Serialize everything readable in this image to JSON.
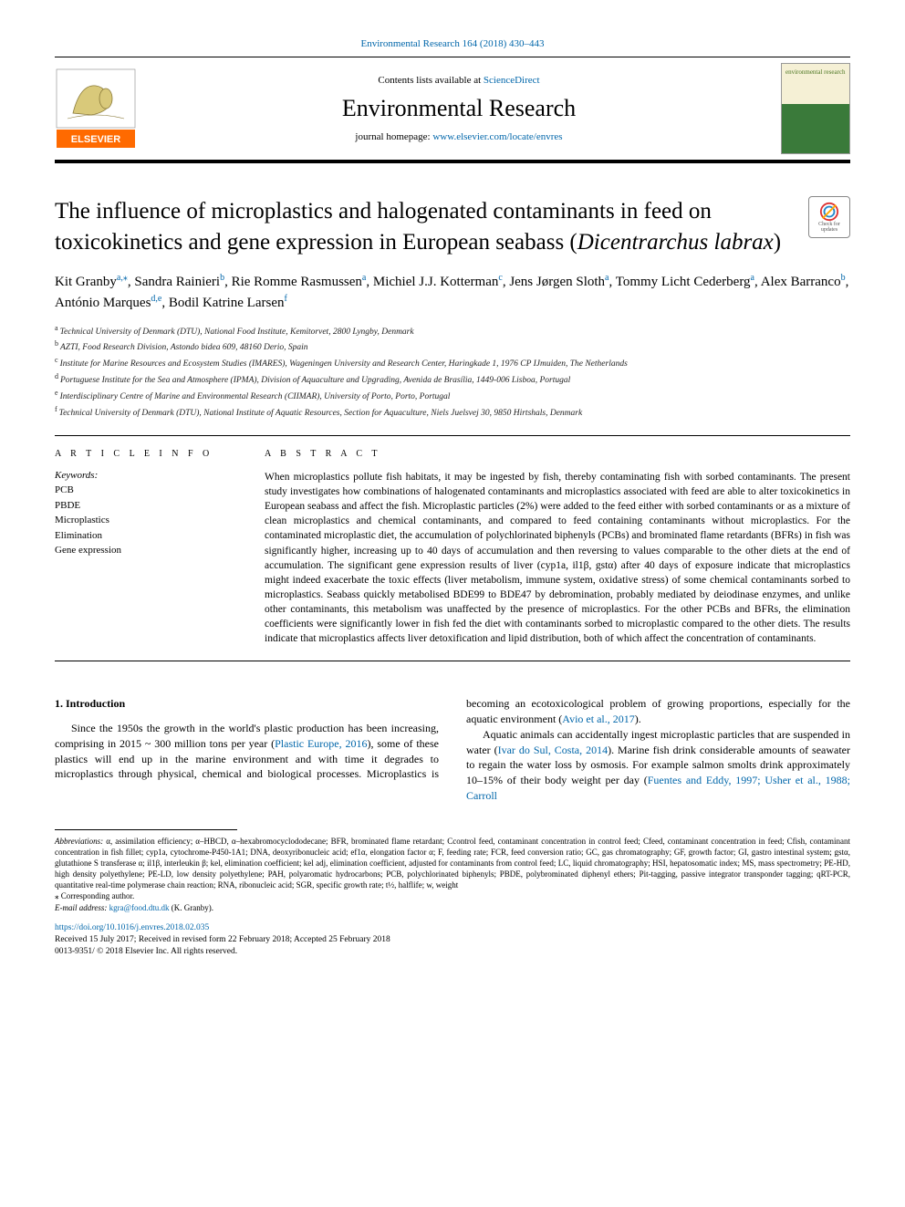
{
  "header": {
    "journal_ref": "Environmental Research 164 (2018) 430–443",
    "contents_prefix": "Contents lists available at ",
    "contents_link": "ScienceDirect",
    "journal_name": "Environmental Research",
    "homepage_prefix": "journal homepage: ",
    "homepage_link": "www.elsevier.com/locate/envres",
    "cover_title": "environmental research"
  },
  "crossmark": {
    "label_top": "Check for",
    "label_bottom": "updates"
  },
  "title": "The influence of microplastics and halogenated contaminants in feed on toxicokinetics and gene expression in European seabass (Dicentrarchus labrax)",
  "title_plain": "The influence of microplastics and halogenated contaminants in feed on toxicokinetics and gene expression in European seabass (",
  "title_italic": "Dicentrarchus labrax",
  "title_close": ")",
  "authors": [
    {
      "name": "Kit Granby",
      "aff": "a,",
      "corr": "⁎"
    },
    {
      "name": "Sandra Rainieri",
      "aff": "b"
    },
    {
      "name": "Rie Romme Rasmussen",
      "aff": "a"
    },
    {
      "name": "Michiel J.J. Kotterman",
      "aff": "c"
    },
    {
      "name": "Jens Jørgen Sloth",
      "aff": "a"
    },
    {
      "name": "Tommy Licht Cederberg",
      "aff": "a"
    },
    {
      "name": "Alex Barranco",
      "aff": "b"
    },
    {
      "name": "António Marques",
      "aff": "d,e"
    },
    {
      "name": "Bodil Katrine Larsen",
      "aff": "f"
    }
  ],
  "affiliations": [
    {
      "key": "a",
      "text": "Technical University of Denmark (DTU), National Food Institute, Kemitorvet, 2800 Lyngby, Denmark"
    },
    {
      "key": "b",
      "text": "AZTI, Food Research Division, Astondo bidea 609, 48160 Derio, Spain"
    },
    {
      "key": "c",
      "text": "Institute for Marine Resources and Ecosystem Studies (IMARES), Wageningen University and Research Center, Haringkade 1, 1976 CP IJmuiden, The Netherlands"
    },
    {
      "key": "d",
      "text": "Portuguese Institute for the Sea and Atmosphere (IPMA), Division of Aquaculture and Upgrading, Avenida de Brasília, 1449-006 Lisboa, Portugal"
    },
    {
      "key": "e",
      "text": "Interdisciplinary Centre of Marine and Environmental Research (CIIMAR), University of Porto, Porto, Portugal"
    },
    {
      "key": "f",
      "text": "Technical University of Denmark (DTU), National Institute of Aquatic Resources, Section for Aquaculture, Niels Juelsvej 30, 9850 Hirtshals, Denmark"
    }
  ],
  "info": {
    "section_label": "A R T I C L E  I N F O",
    "keywords_label": "Keywords:",
    "keywords": [
      "PCB",
      "PBDE",
      "Microplastics",
      "Elimination",
      "Gene expression"
    ]
  },
  "abstract": {
    "section_label": "A B S T R A C T",
    "text": "When microplastics pollute fish habitats, it may be ingested by fish, thereby contaminating fish with sorbed contaminants. The present study investigates how combinations of halogenated contaminants and microplastics associated with feed are able to alter toxicokinetics in European seabass and affect the fish. Microplastic particles (2%) were added to the feed either with sorbed contaminants or as a mixture of clean microplastics and chemical contaminants, and compared to feed containing contaminants without microplastics. For the contaminated microplastic diet, the accumulation of polychlorinated biphenyls (PCBs) and brominated flame retardants (BFRs) in fish was significantly higher, increasing up to 40 days of accumulation and then reversing to values comparable to the other diets at the end of accumulation. The significant gene expression results of liver (cyp1a, il1β, gstα) after 40 days of exposure indicate that microplastics might indeed exacerbate the toxic effects (liver metabolism, immune system, oxidative stress) of some chemical contaminants sorbed to microplastics. Seabass quickly metabolised BDE99 to BDE47 by debromination, probably mediated by deiodinase enzymes, and unlike other contaminants, this metabolism was unaffected by the presence of microplastics. For the other PCBs and BFRs, the elimination coefficients were significantly lower in fish fed the diet with contaminants sorbed to microplastic compared to the other diets. The results indicate that microplastics affects liver detoxification and lipid distribution, both of which affect the concentration of contaminants."
  },
  "body": {
    "heading": "1. Introduction",
    "p1a": "Since the 1950s the growth in the world's plastic production has been increasing, comprising in 2015 ~ 300 million tons per year (",
    "p1_link1": "Plastic Europe, 2016",
    "p1b": "), some of these plastics will end up in the marine environment and with time it degrades to microplastics through physical, chemical and biological processes. Microplastics is becoming an ecotoxicological problem of growing proportions, especially for the aquatic environment (",
    "p1_link2": "Avio et al., 2017",
    "p1c": ").",
    "p2a": "Aquatic animals can accidentally ingest microplastic particles that are suspended in water (",
    "p2_link1": "Ivar do Sul, Costa, 2014",
    "p2b": "). Marine fish drink considerable amounts of seawater to regain the water loss by osmosis. For example salmon smolts drink approximately 10–15% of their body weight per day (",
    "p2_link2": "Fuentes and Eddy, 1997; Usher et al., 1988; Carroll"
  },
  "footnotes": {
    "abbrev_label": "Abbreviations:",
    "abbrev_text": " α, assimilation efficiency; α–HBCD, α–hexabromocyclododecane; BFR, brominated flame retardant; Ccontrol feed, contaminant concentration in control feed; Cfeed, contaminant concentration in feed; Cfish, contaminant concentration in fish fillet; cyp1a, cytochrome-P450-1A1; DNA, deoxyribonucleic acid; ef1α, elongation factor α; F, feeding rate; FCR, feed conversion ratio; GC, gas chromatography; GF, growth factor; GI, gastro intestinal system; gstα, glutathione S transferase α; il1β, interleukin β; kel, elimination coefficient; kel adj, elimination coefficient, adjusted for contaminants from control feed; LC, liquid chromatography; HSI, hepatosomatic index; MS, mass spectrometry; PE-HD, high density polyethylene; PE-LD, low density polyethylene; PAH, polyaromatic hydrocarbons; PCB, polychlorinated biphenyls; PBDE, polybrominated diphenyl ethers; Pit-tagging, passive integrator transponder tagging; qRT-PCR, quantitative real-time polymerase chain reaction; RNA, ribonucleic acid; SGR, specific growth rate; t½, halflife; w, weight",
    "corr_label": "⁎ Corresponding author.",
    "email_label": "E-mail address: ",
    "email": "kgra@food.dtu.dk",
    "email_suffix": " (K. Granby)."
  },
  "doi": {
    "link": "https://doi.org/10.1016/j.envres.2018.02.035",
    "received": "Received 15 July 2017; Received in revised form 22 February 2018; Accepted 25 February 2018",
    "copyright": "0013-9351/ © 2018 Elsevier Inc. All rights reserved."
  },
  "colors": {
    "link": "#0066aa",
    "text": "#000000",
    "elsevier_orange": "#ff6a00",
    "elsevier_blue": "#0a3a7a"
  }
}
